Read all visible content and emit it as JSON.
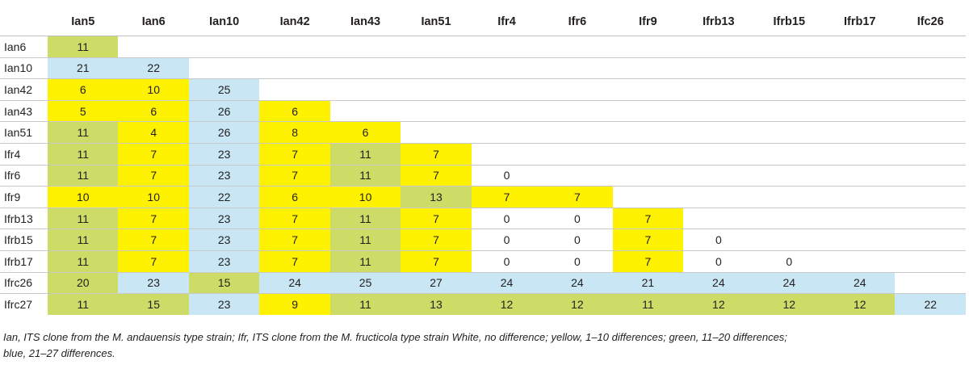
{
  "columns": [
    "Ian5",
    "Ian6",
    "Ian10",
    "Ian42",
    "Ian43",
    "Ian51",
    "Ifr4",
    "Ifr6",
    "Ifr9",
    "Ifrb13",
    "Ifrb15",
    "Ifrb17",
    "Ifc26"
  ],
  "rows": [
    {
      "label": "Ian6",
      "cells": [
        {
          "v": "11",
          "c": "g"
        }
      ]
    },
    {
      "label": "Ian10",
      "cells": [
        {
          "v": "21",
          "c": "b"
        },
        {
          "v": "22",
          "c": "b"
        }
      ]
    },
    {
      "label": "Ian42",
      "cells": [
        {
          "v": "6",
          "c": "y"
        },
        {
          "v": "10",
          "c": "y"
        },
        {
          "v": "25",
          "c": "b"
        }
      ]
    },
    {
      "label": "Ian43",
      "cells": [
        {
          "v": "5",
          "c": "y"
        },
        {
          "v": "6",
          "c": "y"
        },
        {
          "v": "26",
          "c": "b"
        },
        {
          "v": "6",
          "c": "y"
        }
      ]
    },
    {
      "label": "Ian51",
      "cells": [
        {
          "v": "11",
          "c": "g"
        },
        {
          "v": "4",
          "c": "y"
        },
        {
          "v": "26",
          "c": "b"
        },
        {
          "v": "8",
          "c": "y"
        },
        {
          "v": "6",
          "c": "y"
        }
      ]
    },
    {
      "label": "Ifr4",
      "cells": [
        {
          "v": "11",
          "c": "g"
        },
        {
          "v": "7",
          "c": "y"
        },
        {
          "v": "23",
          "c": "b"
        },
        {
          "v": "7",
          "c": "y"
        },
        {
          "v": "11",
          "c": "g"
        },
        {
          "v": "7",
          "c": "y"
        }
      ]
    },
    {
      "label": "Ifr6",
      "cells": [
        {
          "v": "11",
          "c": "g"
        },
        {
          "v": "7",
          "c": "y"
        },
        {
          "v": "23",
          "c": "b"
        },
        {
          "v": "7",
          "c": "y"
        },
        {
          "v": "11",
          "c": "g"
        },
        {
          "v": "7",
          "c": "y"
        },
        {
          "v": "0",
          "c": "w"
        }
      ]
    },
    {
      "label": "Ifr9",
      "cells": [
        {
          "v": "10",
          "c": "y"
        },
        {
          "v": "10",
          "c": "y"
        },
        {
          "v": "22",
          "c": "b"
        },
        {
          "v": "6",
          "c": "y"
        },
        {
          "v": "10",
          "c": "y"
        },
        {
          "v": "13",
          "c": "g"
        },
        {
          "v": "7",
          "c": "y"
        },
        {
          "v": "7",
          "c": "y"
        }
      ]
    },
    {
      "label": "Ifrb13",
      "cells": [
        {
          "v": "11",
          "c": "g"
        },
        {
          "v": "7",
          "c": "y"
        },
        {
          "v": "23",
          "c": "b"
        },
        {
          "v": "7",
          "c": "y"
        },
        {
          "v": "11",
          "c": "g"
        },
        {
          "v": "7",
          "c": "y"
        },
        {
          "v": "0",
          "c": "w"
        },
        {
          "v": "0",
          "c": "w"
        },
        {
          "v": "7",
          "c": "y"
        }
      ]
    },
    {
      "label": "Ifrb15",
      "cells": [
        {
          "v": "11",
          "c": "g"
        },
        {
          "v": "7",
          "c": "y"
        },
        {
          "v": "23",
          "c": "b"
        },
        {
          "v": "7",
          "c": "y"
        },
        {
          "v": "11",
          "c": "g"
        },
        {
          "v": "7",
          "c": "y"
        },
        {
          "v": "0",
          "c": "w"
        },
        {
          "v": "0",
          "c": "w"
        },
        {
          "v": "7",
          "c": "y"
        },
        {
          "v": "0",
          "c": "w"
        }
      ]
    },
    {
      "label": "Ifrb17",
      "cells": [
        {
          "v": "11",
          "c": "g"
        },
        {
          "v": "7",
          "c": "y"
        },
        {
          "v": "23",
          "c": "b"
        },
        {
          "v": "7",
          "c": "y"
        },
        {
          "v": "11",
          "c": "g"
        },
        {
          "v": "7",
          "c": "y"
        },
        {
          "v": "0",
          "c": "w"
        },
        {
          "v": "0",
          "c": "w"
        },
        {
          "v": "7",
          "c": "y"
        },
        {
          "v": "0",
          "c": "w"
        },
        {
          "v": "0",
          "c": "w"
        }
      ]
    },
    {
      "label": "Ifrc26",
      "cells": [
        {
          "v": "20",
          "c": "g"
        },
        {
          "v": "23",
          "c": "b"
        },
        {
          "v": "15",
          "c": "g"
        },
        {
          "v": "24",
          "c": "b"
        },
        {
          "v": "25",
          "c": "b"
        },
        {
          "v": "27",
          "c": "b"
        },
        {
          "v": "24",
          "c": "b"
        },
        {
          "v": "24",
          "c": "b"
        },
        {
          "v": "21",
          "c": "b"
        },
        {
          "v": "24",
          "c": "b"
        },
        {
          "v": "24",
          "c": "b"
        },
        {
          "v": "24",
          "c": "b"
        }
      ]
    },
    {
      "label": "Ifrc27",
      "cells": [
        {
          "v": "11",
          "c": "g"
        },
        {
          "v": "15",
          "c": "g"
        },
        {
          "v": "23",
          "c": "b"
        },
        {
          "v": "9",
          "c": "y"
        },
        {
          "v": "11",
          "c": "g"
        },
        {
          "v": "13",
          "c": "g"
        },
        {
          "v": "12",
          "c": "g"
        },
        {
          "v": "12",
          "c": "g"
        },
        {
          "v": "11",
          "c": "g"
        },
        {
          "v": "12",
          "c": "g"
        },
        {
          "v": "12",
          "c": "g"
        },
        {
          "v": "12",
          "c": "g"
        },
        {
          "v": "22",
          "c": "b"
        }
      ]
    }
  ],
  "colors": {
    "yellow": "#fff200",
    "green": "#cddc66",
    "blue": "#c8e6f4",
    "white": "#ffffff"
  },
  "footnote": {
    "line1": "Ian, ITS clone from the M. andauensis type strain; Ifr, ITS clone from the M. fructicola type strain White, no difference; yellow, 1–10 differences; green, 11–20 differences;",
    "line2": "blue, 21–27 differences."
  }
}
